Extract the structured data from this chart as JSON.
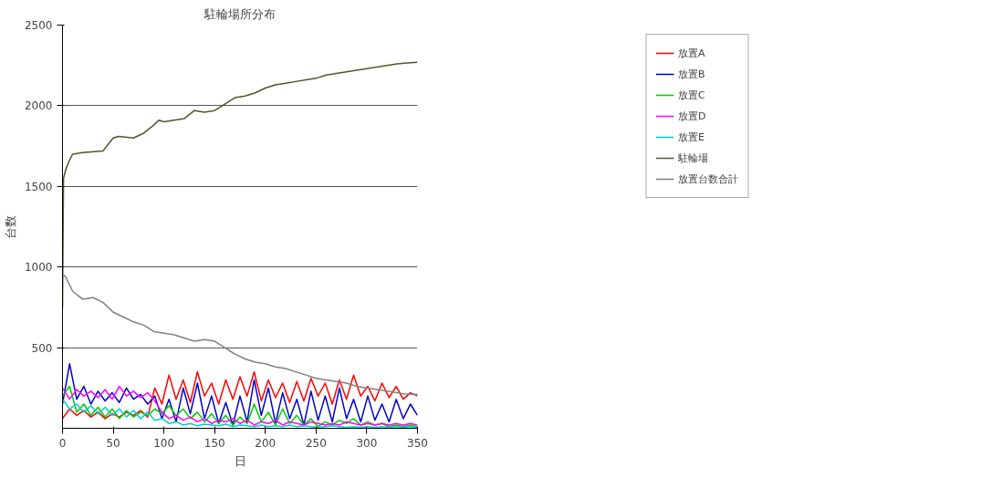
{
  "chart_data": {
    "type": "line",
    "title": "駐輪場所分布",
    "xlabel": "日",
    "ylabel": "台数",
    "xlim": [
      0,
      350
    ],
    "xticks": [
      0,
      50,
      100,
      150,
      200,
      250,
      300,
      350
    ],
    "ylim": [
      0,
      2500
    ],
    "yticks": [
      500,
      1000,
      1500,
      2000,
      2500
    ],
    "grid": "y",
    "legend": "top right",
    "x": [
      0,
      7,
      14,
      21,
      28,
      35,
      42,
      49,
      56,
      63,
      70,
      77,
      84,
      91,
      98,
      105,
      112,
      119,
      126,
      133,
      140,
      147,
      154,
      161,
      168,
      175,
      182,
      189,
      196,
      203,
      210,
      217,
      224,
      231,
      238,
      245,
      252,
      259,
      266,
      273,
      280,
      287,
      294,
      301,
      308,
      315,
      322,
      329,
      336,
      343,
      350
    ],
    "series": [
      {
        "name": "放置A",
        "color": "#ff0000",
        "values": [
          60,
          120,
          80,
          110,
          70,
          100,
          60,
          90,
          70,
          100,
          80,
          110,
          70,
          250,
          150,
          330,
          180,
          300,
          160,
          350,
          200,
          280,
          150,
          300,
          180,
          320,
          200,
          350,
          170,
          300,
          190,
          280,
          160,
          290,
          170,
          310,
          200,
          280,
          150,
          300,
          180,
          330,
          200,
          260,
          170,
          280,
          190,
          260,
          180,
          220,
          200
        ]
      },
      {
        "name": "放置B",
        "color": "#0000cc",
        "values": [
          150,
          400,
          180,
          260,
          150,
          230,
          170,
          220,
          160,
          250,
          180,
          210,
          150,
          200,
          60,
          180,
          40,
          250,
          90,
          280,
          60,
          200,
          30,
          160,
          20,
          200,
          40,
          300,
          80,
          250,
          30,
          220,
          60,
          180,
          20,
          230,
          50,
          200,
          40,
          250,
          60,
          180,
          40,
          200,
          50,
          150,
          40,
          180,
          60,
          150,
          80
        ]
      },
      {
        "name": "放置C",
        "color": "#00cc00",
        "values": [
          200,
          260,
          100,
          150,
          80,
          130,
          70,
          120,
          60,
          110,
          70,
          100,
          80,
          120,
          90,
          140,
          80,
          120,
          60,
          100,
          40,
          90,
          30,
          80,
          20,
          70,
          30,
          150,
          40,
          100,
          20,
          120,
          30,
          80,
          20,
          60,
          10,
          40,
          20,
          50,
          30,
          60,
          20,
          40,
          20,
          30,
          10,
          20,
          10,
          20,
          10
        ]
      },
      {
        "name": "放置D",
        "color": "#ff00ff",
        "values": [
          250,
          180,
          240,
          200,
          230,
          190,
          240,
          180,
          260,
          200,
          230,
          190,
          220,
          170,
          100,
          60,
          80,
          50,
          70,
          40,
          60,
          30,
          50,
          40,
          60,
          30,
          50,
          20,
          40,
          30,
          50,
          20,
          40,
          30,
          20,
          40,
          30,
          20,
          30,
          20,
          40,
          30,
          20,
          30,
          20,
          30,
          20,
          30,
          20,
          30,
          20
        ]
      },
      {
        "name": "放置E",
        "color": "#00cccc",
        "values": [
          180,
          120,
          150,
          100,
          140,
          90,
          130,
          80,
          120,
          70,
          110,
          60,
          100,
          50,
          60,
          30,
          40,
          20,
          30,
          15,
          25,
          20,
          15,
          25,
          10,
          20,
          15,
          10,
          20,
          10,
          15,
          10,
          20,
          10,
          15,
          10,
          5,
          10,
          15,
          10,
          5,
          10,
          5,
          10,
          5,
          10,
          5,
          10,
          5,
          10,
          5
        ]
      },
      {
        "name": "駐輪場",
        "color": "#4b5a2a",
        "x": [
          0,
          1,
          3,
          6,
          10,
          20,
          40,
          45,
          50,
          55,
          70,
          80,
          90,
          95,
          100,
          120,
          130,
          140,
          150,
          160,
          170,
          180,
          190,
          200,
          210,
          220,
          230,
          240,
          250,
          260,
          270,
          280,
          290,
          300,
          310,
          320,
          330,
          340,
          350
        ],
        "values": [
          750,
          1550,
          1600,
          1650,
          1700,
          1710,
          1720,
          1760,
          1800,
          1810,
          1800,
          1830,
          1880,
          1910,
          1900,
          1920,
          1970,
          1960,
          1970,
          2010,
          2050,
          2060,
          2080,
          2110,
          2130,
          2140,
          2150,
          2160,
          2170,
          2190,
          2200,
          2210,
          2220,
          2230,
          2240,
          2250,
          2260,
          2265,
          2270
        ]
      },
      {
        "name": "放置台数合計",
        "color": "#808080",
        "x": [
          1,
          3,
          10,
          20,
          30,
          40,
          50,
          60,
          70,
          80,
          90,
          100,
          110,
          120,
          130,
          140,
          150,
          160,
          170,
          180,
          190,
          200,
          210,
          220,
          230,
          240,
          250,
          260,
          270,
          280,
          290,
          300,
          310,
          320,
          330,
          340,
          350
        ],
        "values": [
          950,
          940,
          850,
          800,
          810,
          780,
          720,
          690,
          660,
          640,
          600,
          590,
          580,
          560,
          540,
          550,
          540,
          500,
          460,
          430,
          410,
          400,
          380,
          370,
          350,
          330,
          310,
          300,
          290,
          280,
          260,
          250,
          240,
          230,
          220,
          210,
          210
        ]
      }
    ]
  }
}
